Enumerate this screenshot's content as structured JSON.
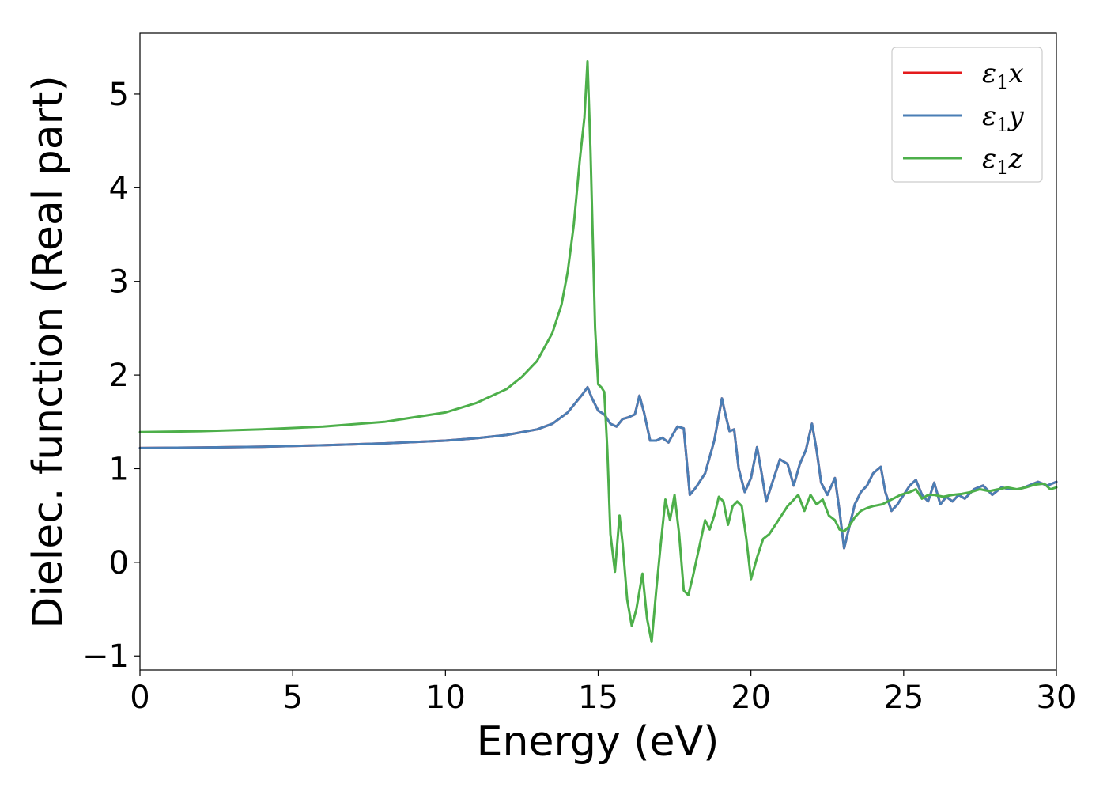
{
  "chart_data": {
    "type": "line",
    "title": "",
    "xlabel": "Energy (eV)",
    "ylabel": "Dielec. function (Real part)",
    "xlim": [
      0,
      30
    ],
    "ylim": [
      -1.15,
      5.65
    ],
    "xticks": [
      0,
      5,
      10,
      15,
      20,
      25,
      30
    ],
    "xtick_labels": [
      "0",
      "5",
      "10",
      "15",
      "20",
      "25",
      "30"
    ],
    "yticks": [
      -1,
      0,
      1,
      2,
      3,
      4,
      5
    ],
    "ytick_labels": [
      "−1",
      "0",
      "1",
      "2",
      "3",
      "4",
      "5"
    ],
    "grid": false,
    "legend_position": "top-right",
    "series": [
      {
        "name": "ε1x",
        "legend_base": "ε",
        "legend_sub": "1",
        "legend_var": "x",
        "color": "#e41a1c",
        "x": [
          0,
          2,
          4,
          6,
          8,
          10,
          11,
          12,
          13,
          13.5,
          14,
          14.3,
          14.5,
          14.65,
          14.8,
          15.0,
          15.2,
          15.4,
          15.6,
          15.8,
          16.0,
          16.2,
          16.35,
          16.5,
          16.7,
          16.9,
          17.1,
          17.3,
          17.45,
          17.6,
          17.8,
          18.0,
          18.2,
          18.5,
          18.8,
          19.05,
          19.15,
          19.3,
          19.45,
          19.6,
          19.8,
          20.0,
          20.2,
          20.35,
          20.5,
          20.7,
          20.95,
          21.2,
          21.4,
          21.6,
          21.8,
          22.0,
          22.15,
          22.3,
          22.5,
          22.75,
          22.9,
          23.05,
          23.2,
          23.4,
          23.6,
          23.8,
          24.0,
          24.25,
          24.4,
          24.6,
          24.8,
          25.0,
          25.2,
          25.4,
          25.6,
          25.8,
          26.0,
          26.2,
          26.4,
          26.6,
          26.8,
          27.0,
          27.3,
          27.6,
          27.9,
          28.2,
          28.5,
          28.8,
          29.1,
          29.4,
          29.7,
          30.0
        ],
        "y": [
          1.22,
          1.225,
          1.235,
          1.25,
          1.27,
          1.3,
          1.325,
          1.36,
          1.42,
          1.48,
          1.6,
          1.72,
          1.8,
          1.87,
          1.75,
          1.62,
          1.58,
          1.48,
          1.45,
          1.53,
          1.55,
          1.58,
          1.78,
          1.6,
          1.3,
          1.3,
          1.33,
          1.28,
          1.37,
          1.45,
          1.43,
          0.72,
          0.8,
          0.95,
          1.3,
          1.75,
          1.6,
          1.4,
          1.42,
          1.0,
          0.75,
          0.9,
          1.23,
          0.95,
          0.65,
          0.85,
          1.1,
          1.05,
          0.82,
          1.05,
          1.2,
          1.48,
          1.2,
          0.85,
          0.72,
          0.9,
          0.55,
          0.15,
          0.35,
          0.62,
          0.75,
          0.82,
          0.95,
          1.02,
          0.75,
          0.55,
          0.62,
          0.72,
          0.82,
          0.88,
          0.72,
          0.65,
          0.85,
          0.62,
          0.7,
          0.65,
          0.72,
          0.68,
          0.78,
          0.82,
          0.72,
          0.8,
          0.78,
          0.78,
          0.82,
          0.86,
          0.82,
          0.86
        ]
      },
      {
        "name": "ε1y",
        "legend_base": "ε",
        "legend_sub": "1",
        "legend_var": "y",
        "color": "#4a7eb5",
        "x": [
          0,
          2,
          4,
          6,
          8,
          10,
          11,
          12,
          13,
          13.5,
          14,
          14.3,
          14.5,
          14.65,
          14.8,
          15.0,
          15.2,
          15.4,
          15.6,
          15.8,
          16.0,
          16.2,
          16.35,
          16.5,
          16.7,
          16.9,
          17.1,
          17.3,
          17.45,
          17.6,
          17.8,
          18.0,
          18.2,
          18.5,
          18.8,
          19.05,
          19.15,
          19.3,
          19.45,
          19.6,
          19.8,
          20.0,
          20.2,
          20.35,
          20.5,
          20.7,
          20.95,
          21.2,
          21.4,
          21.6,
          21.8,
          22.0,
          22.15,
          22.3,
          22.5,
          22.75,
          22.9,
          23.05,
          23.2,
          23.4,
          23.6,
          23.8,
          24.0,
          24.25,
          24.4,
          24.6,
          24.8,
          25.0,
          25.2,
          25.4,
          25.6,
          25.8,
          26.0,
          26.2,
          26.4,
          26.6,
          26.8,
          27.0,
          27.3,
          27.6,
          27.9,
          28.2,
          28.5,
          28.8,
          29.1,
          29.4,
          29.7,
          30.0
        ],
        "y": [
          1.22,
          1.225,
          1.235,
          1.25,
          1.27,
          1.3,
          1.325,
          1.36,
          1.42,
          1.48,
          1.6,
          1.72,
          1.8,
          1.87,
          1.75,
          1.62,
          1.58,
          1.48,
          1.45,
          1.53,
          1.55,
          1.58,
          1.78,
          1.6,
          1.3,
          1.3,
          1.33,
          1.28,
          1.37,
          1.45,
          1.43,
          0.72,
          0.8,
          0.95,
          1.3,
          1.75,
          1.6,
          1.4,
          1.42,
          1.0,
          0.75,
          0.9,
          1.23,
          0.95,
          0.65,
          0.85,
          1.1,
          1.05,
          0.82,
          1.05,
          1.2,
          1.48,
          1.2,
          0.85,
          0.72,
          0.9,
          0.55,
          0.15,
          0.35,
          0.62,
          0.75,
          0.82,
          0.95,
          1.02,
          0.75,
          0.55,
          0.62,
          0.72,
          0.82,
          0.88,
          0.72,
          0.65,
          0.85,
          0.62,
          0.7,
          0.65,
          0.72,
          0.68,
          0.78,
          0.82,
          0.72,
          0.8,
          0.78,
          0.78,
          0.82,
          0.86,
          0.82,
          0.86
        ]
      },
      {
        "name": "ε1z",
        "legend_base": "ε",
        "legend_sub": "1",
        "legend_var": "z",
        "color": "#4daf4a",
        "x": [
          0,
          2,
          4,
          6,
          8,
          10,
          11,
          12,
          12.5,
          13,
          13.5,
          13.8,
          14.0,
          14.2,
          14.4,
          14.55,
          14.65,
          14.75,
          14.9,
          15.0,
          15.1,
          15.2,
          15.3,
          15.4,
          15.55,
          15.7,
          15.8,
          15.95,
          16.1,
          16.25,
          16.45,
          16.6,
          16.75,
          16.9,
          17.05,
          17.2,
          17.35,
          17.5,
          17.65,
          17.8,
          17.95,
          18.1,
          18.3,
          18.5,
          18.65,
          18.8,
          18.95,
          19.1,
          19.25,
          19.4,
          19.55,
          19.7,
          19.85,
          20.0,
          20.2,
          20.4,
          20.6,
          20.8,
          21.0,
          21.2,
          21.35,
          21.55,
          21.75,
          21.95,
          22.15,
          22.35,
          22.55,
          22.75,
          22.9,
          23.05,
          23.2,
          23.4,
          23.6,
          23.8,
          24.0,
          24.3,
          24.6,
          24.9,
          25.2,
          25.4,
          25.6,
          25.8,
          26.0,
          26.3,
          26.6,
          26.9,
          27.2,
          27.5,
          27.8,
          28.1,
          28.4,
          28.7,
          29.0,
          29.3,
          29.6,
          29.8,
          30.0
        ],
        "y": [
          1.39,
          1.4,
          1.42,
          1.45,
          1.5,
          1.6,
          1.7,
          1.85,
          1.98,
          2.15,
          2.45,
          2.75,
          3.1,
          3.6,
          4.3,
          4.75,
          5.35,
          4.4,
          2.5,
          1.9,
          1.87,
          1.82,
          1.2,
          0.3,
          -0.1,
          0.5,
          0.2,
          -0.4,
          -0.68,
          -0.5,
          -0.12,
          -0.6,
          -0.85,
          -0.3,
          0.2,
          0.67,
          0.45,
          0.72,
          0.3,
          -0.3,
          -0.35,
          -0.15,
          0.15,
          0.45,
          0.35,
          0.5,
          0.7,
          0.65,
          0.4,
          0.6,
          0.65,
          0.6,
          0.25,
          -0.18,
          0.05,
          0.25,
          0.3,
          0.4,
          0.5,
          0.6,
          0.65,
          0.72,
          0.55,
          0.72,
          0.62,
          0.67,
          0.5,
          0.45,
          0.35,
          0.33,
          0.38,
          0.48,
          0.55,
          0.58,
          0.6,
          0.62,
          0.67,
          0.72,
          0.75,
          0.78,
          0.68,
          0.72,
          0.72,
          0.7,
          0.72,
          0.73,
          0.75,
          0.78,
          0.76,
          0.78,
          0.8,
          0.78,
          0.8,
          0.83,
          0.84,
          0.78,
          0.8
        ]
      }
    ]
  }
}
